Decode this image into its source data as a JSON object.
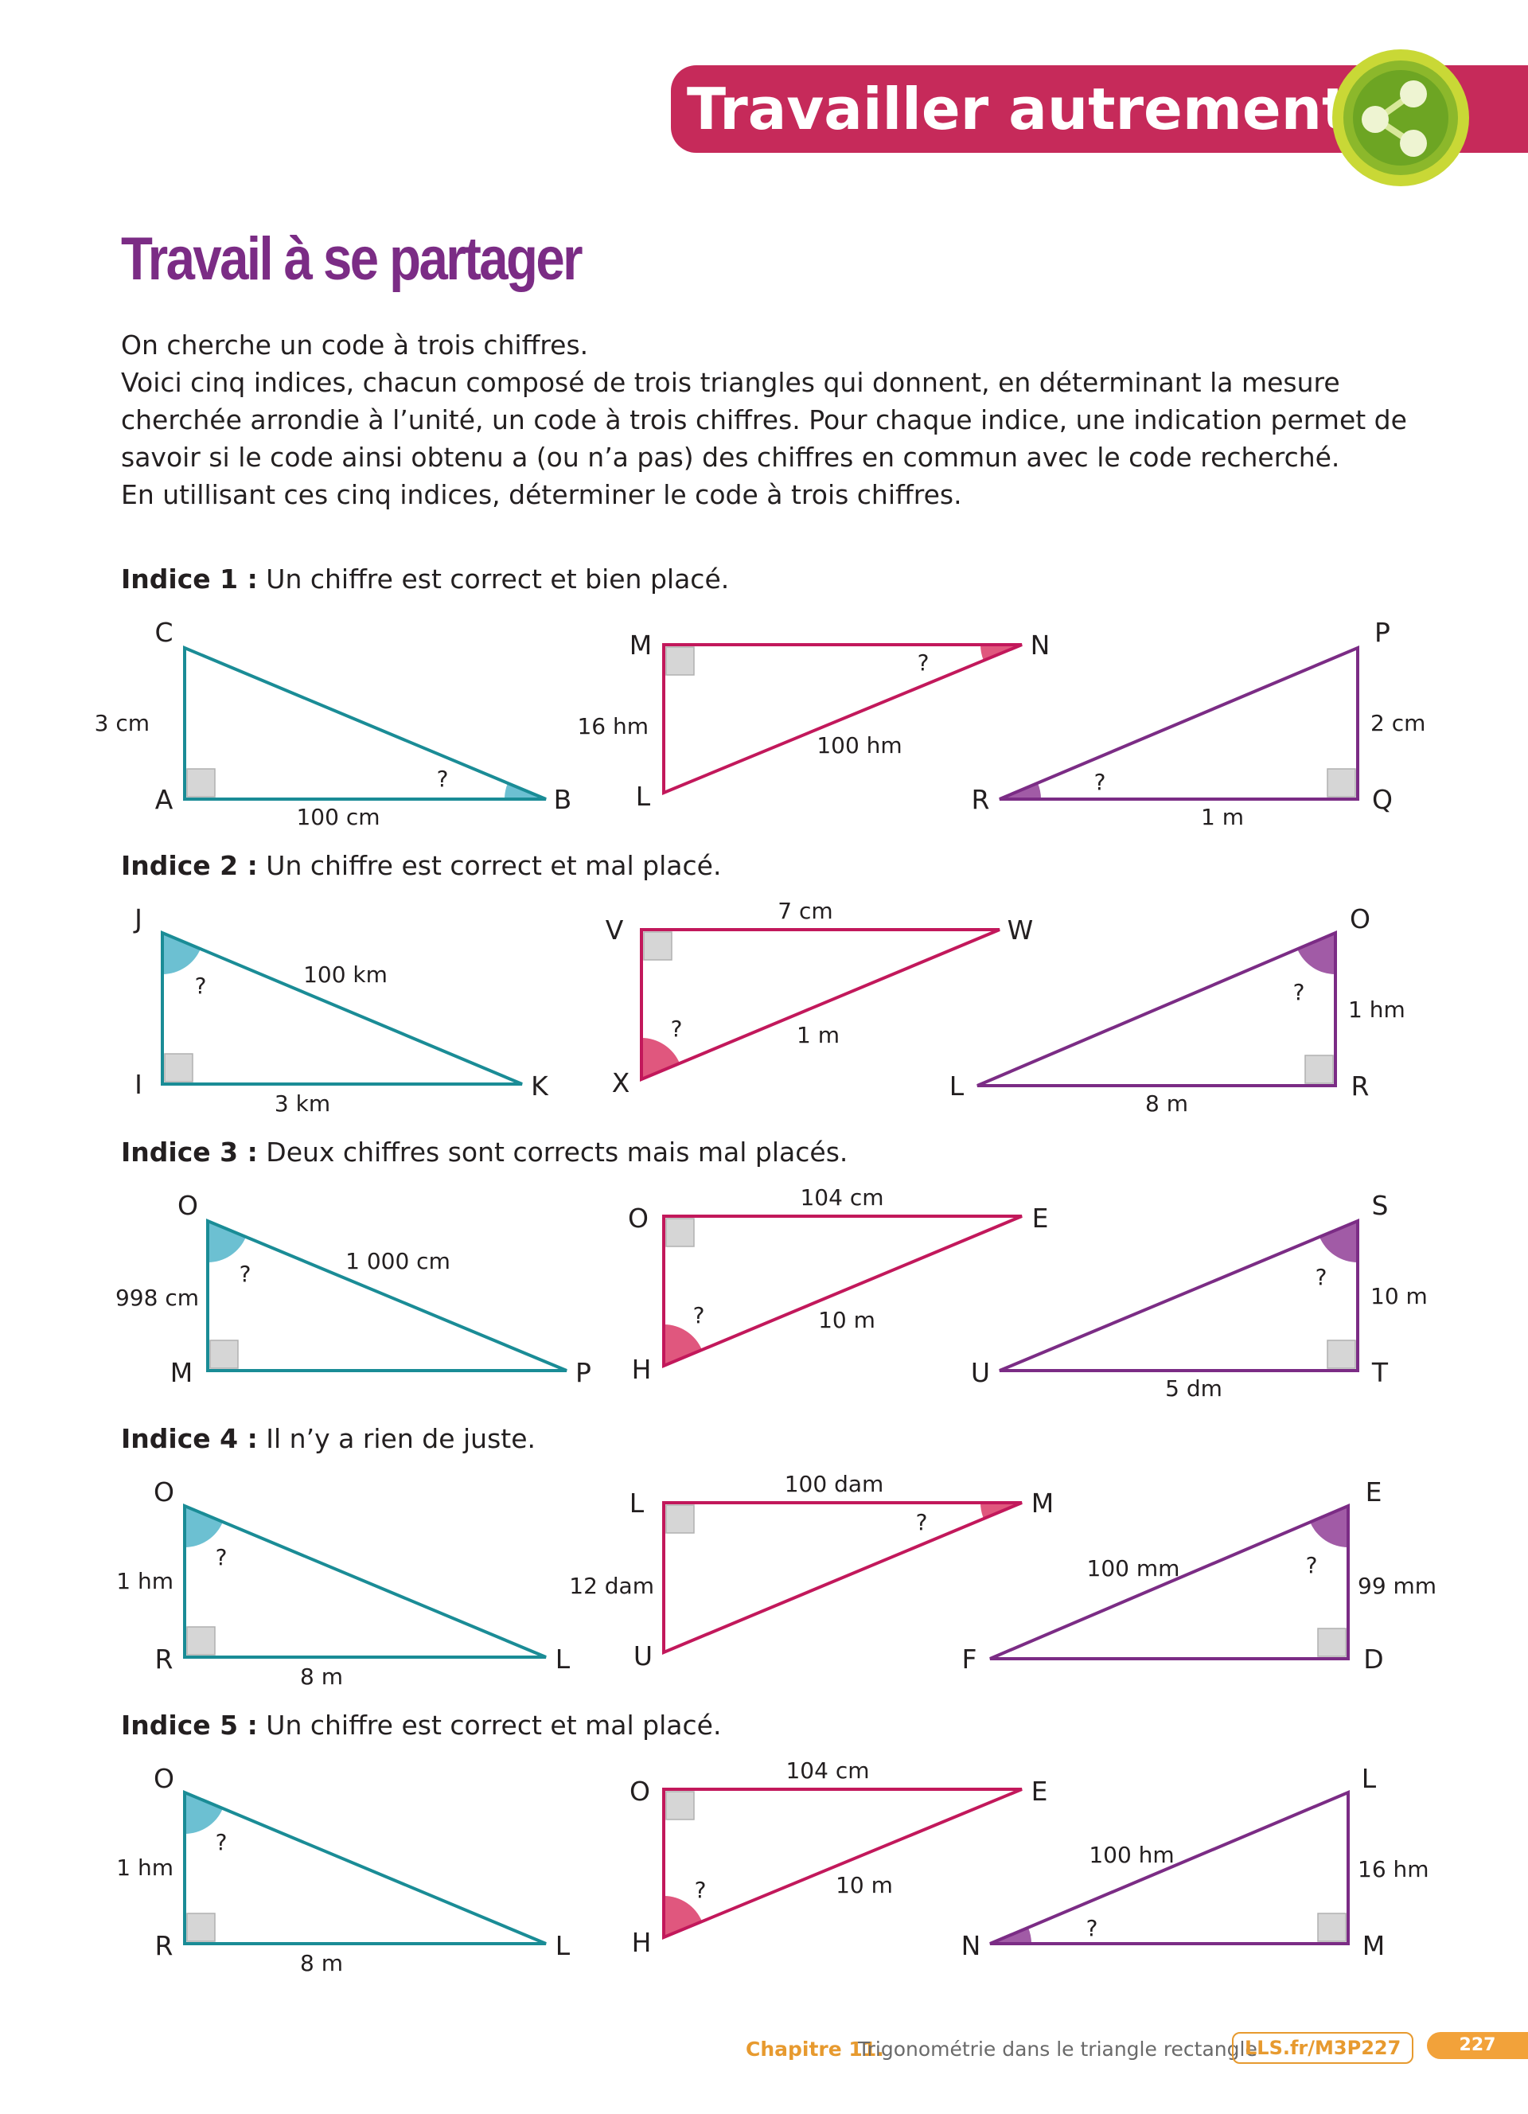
{
  "banner": {
    "title": "Travailler autrement"
  },
  "section_title": "Travail à se partager",
  "intro": [
    "On cherche un code à trois chiffres.",
    "Voici cinq indices, chacun composé de trois triangles qui donnent, en déterminant la mesure cherchée arrondie à l’unité, un code à trois chiffres. Pour chaque indice, une indication permet de savoir si le code ainsi obtenu a (ou n’a pas) des chiffres en commun avec le code recherché.",
    "En utillisant ces cinq indices, déterminer le code à trois chiffres."
  ],
  "colors": {
    "teal": "#1a8c96",
    "crimson": "#c2185b",
    "purple": "#7b2c85",
    "teal_fill": "#6cc0d2",
    "crimson_fill": "#e0577e",
    "purple_fill": "#a15ba6"
  },
  "clues": [
    {
      "label": "Indice 1 :",
      "text": " Un chiffre est correct et bien placé.",
      "triangles": [
        {
          "color": "teal",
          "vertices": [
            "C",
            "A",
            "B"
          ],
          "labels": [
            "3 cm",
            "100 cm"
          ],
          "unknown": "?"
        },
        {
          "color": "crimson",
          "vertices": [
            "M",
            "N",
            "L"
          ],
          "labels": [
            "16 hm",
            "100 hm"
          ],
          "unknown": "?"
        },
        {
          "color": "purple",
          "vertices": [
            "P",
            "R",
            "Q"
          ],
          "labels": [
            "2 cm",
            "1 m"
          ],
          "unknown": "?"
        }
      ]
    },
    {
      "label": "Indice 2 :",
      "text": " Un chiffre est correct et mal placé.",
      "triangles": [
        {
          "color": "teal",
          "vertices": [
            "J",
            "I",
            "K"
          ],
          "labels": [
            "100 km",
            "3 km"
          ],
          "unknown": "?"
        },
        {
          "color": "crimson",
          "vertices": [
            "V",
            "W",
            "X"
          ],
          "labels": [
            "7 cm",
            "1 m"
          ],
          "unknown": "?"
        },
        {
          "color": "purple",
          "vertices": [
            "O",
            "L",
            "R"
          ],
          "labels": [
            "1 hm",
            "8 m"
          ],
          "unknown": "?"
        }
      ]
    },
    {
      "label": "Indice 3 :",
      "text": " Deux chiffres sont corrects mais mal placés.",
      "triangles": [
        {
          "color": "teal",
          "vertices": [
            "O",
            "M",
            "P"
          ],
          "labels": [
            "998 cm",
            "1 000 cm"
          ],
          "unknown": "?"
        },
        {
          "color": "crimson",
          "vertices": [
            "O",
            "E",
            "H"
          ],
          "labels": [
            "104 cm",
            "10 m"
          ],
          "unknown": "?"
        },
        {
          "color": "purple",
          "vertices": [
            "S",
            "U",
            "T"
          ],
          "labels": [
            "10 m",
            "5 dm"
          ],
          "unknown": "?"
        }
      ]
    },
    {
      "label": "Indice 4 :",
      "text": " Il n’y a rien de juste.",
      "triangles": [
        {
          "color": "teal",
          "vertices": [
            "O",
            "R",
            "L"
          ],
          "labels": [
            "1 hm",
            "8 m"
          ],
          "unknown": "?"
        },
        {
          "color": "crimson",
          "vertices": [
            "L",
            "M",
            "U"
          ],
          "labels": [
            "100 dam",
            "12 dam"
          ],
          "unknown": "?"
        },
        {
          "color": "purple",
          "vertices": [
            "E",
            "F",
            "D"
          ],
          "labels": [
            "100 mm",
            "99 mm"
          ],
          "unknown": "?"
        }
      ]
    },
    {
      "label": "Indice 5 :",
      "text": " Un chiffre est correct et mal placé.",
      "triangles": [
        {
          "color": "teal",
          "vertices": [
            "O",
            "R",
            "L"
          ],
          "labels": [
            "1 hm",
            "8 m"
          ],
          "unknown": "?"
        },
        {
          "color": "crimson",
          "vertices": [
            "O",
            "E",
            "H"
          ],
          "labels": [
            "104 cm",
            "10 m"
          ],
          "unknown": "?"
        },
        {
          "color": "purple",
          "vertices": [
            "L",
            "N",
            "M"
          ],
          "labels": [
            "100 hm",
            "16 hm"
          ],
          "unknown": "?"
        }
      ]
    }
  ],
  "footer": {
    "chapter": "Chapitre 11.",
    "title": " Trigonométrie dans le triangle rectangle",
    "link": "LLS.fr/M3P227",
    "page": "227"
  }
}
